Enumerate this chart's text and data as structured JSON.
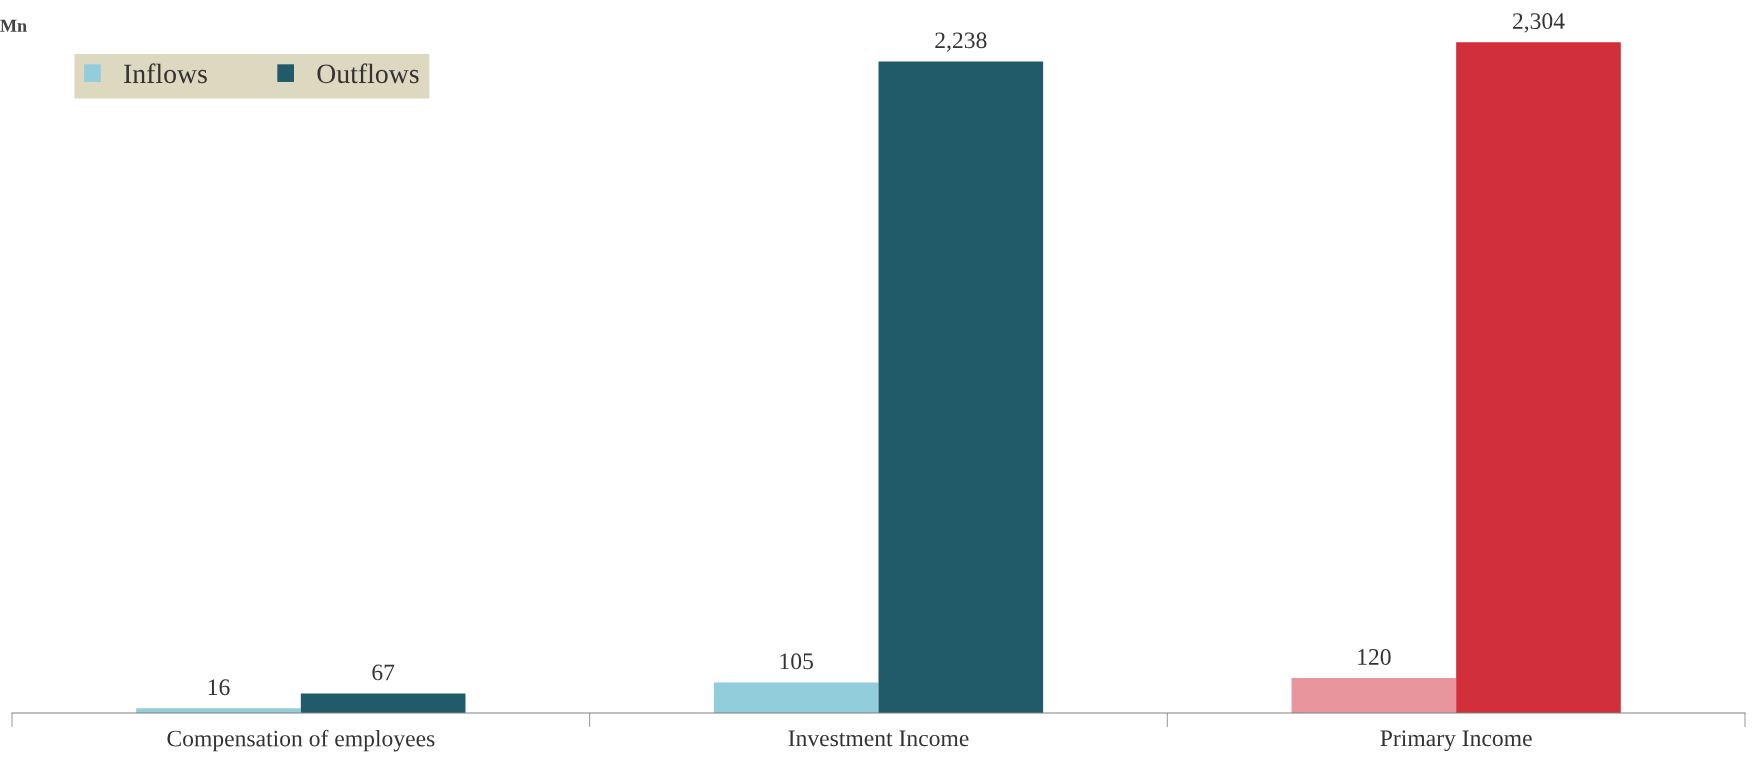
{
  "chart_data": {
    "type": "bar",
    "ylabel": "Mn",
    "categories": [
      "Compensation of employees",
      "Investment Income",
      "Primary Income"
    ],
    "series": [
      {
        "name": "Inflows",
        "color": "#92cddc",
        "colors": [
          "#92cddc",
          "#92cddc",
          "#e8959e"
        ],
        "values": [
          16,
          105,
          120
        ],
        "value_labels": [
          "16",
          "105",
          "120"
        ]
      },
      {
        "name": "Outflows",
        "color": "#215a69",
        "colors": [
          "#215a69",
          "#215a69",
          "#d12f3b"
        ],
        "values": [
          67,
          2238,
          2304
        ],
        "value_labels": [
          "67",
          "2,238",
          "2,304"
        ]
      }
    ],
    "legend": "top left",
    "grid": false
  }
}
